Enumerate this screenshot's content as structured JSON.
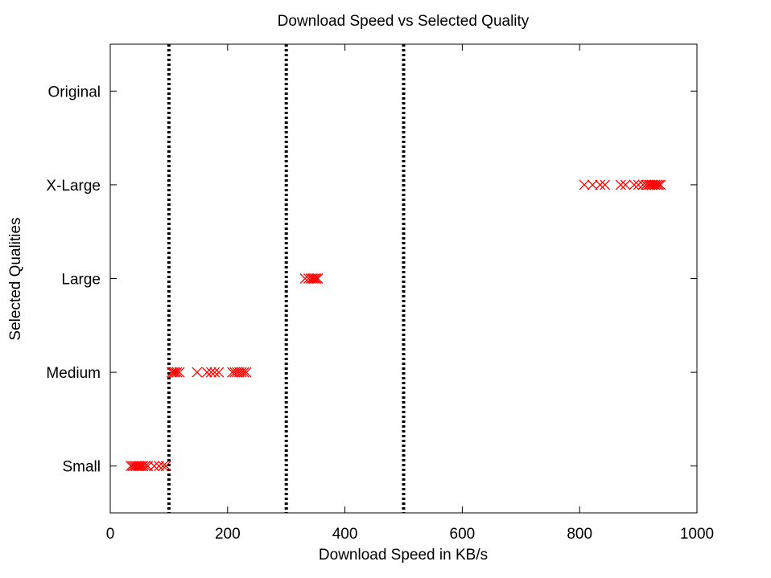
{
  "chart_data": {
    "type": "scatter",
    "title": "Download Speed vs Selected Quality",
    "xlabel": "Download Speed in KB/s",
    "ylabel": "Selected Qualities",
    "xlim": [
      0,
      1000
    ],
    "xticks": [
      0,
      200,
      400,
      600,
      800,
      1000
    ],
    "ycategories": [
      "Small",
      "Medium",
      "Large",
      "X-Large",
      "Original"
    ],
    "ylim": [
      0.5,
      5.5
    ],
    "grid": false,
    "marker": "x",
    "marker_color": "#ff0000",
    "threshold_lines": [
      100,
      300,
      500
    ],
    "threshold_line_style": "dotted",
    "series": [
      {
        "points": [
          {
            "x": 35,
            "y": "Small"
          },
          {
            "x": 38,
            "y": "Small"
          },
          {
            "x": 41,
            "y": "Small"
          },
          {
            "x": 44,
            "y": "Small"
          },
          {
            "x": 47,
            "y": "Small"
          },
          {
            "x": 50,
            "y": "Small"
          },
          {
            "x": 53,
            "y": "Small"
          },
          {
            "x": 56,
            "y": "Small"
          },
          {
            "x": 60,
            "y": "Small"
          },
          {
            "x": 64,
            "y": "Small"
          },
          {
            "x": 75,
            "y": "Small"
          },
          {
            "x": 83,
            "y": "Small"
          },
          {
            "x": 90,
            "y": "Small"
          },
          {
            "x": 95,
            "y": "Small"
          },
          {
            "x": 105,
            "y": "Medium"
          },
          {
            "x": 108,
            "y": "Medium"
          },
          {
            "x": 111,
            "y": "Medium"
          },
          {
            "x": 114,
            "y": "Medium"
          },
          {
            "x": 118,
            "y": "Medium"
          },
          {
            "x": 148,
            "y": "Medium"
          },
          {
            "x": 165,
            "y": "Medium"
          },
          {
            "x": 172,
            "y": "Medium"
          },
          {
            "x": 178,
            "y": "Medium"
          },
          {
            "x": 185,
            "y": "Medium"
          },
          {
            "x": 208,
            "y": "Medium"
          },
          {
            "x": 212,
            "y": "Medium"
          },
          {
            "x": 216,
            "y": "Medium"
          },
          {
            "x": 220,
            "y": "Medium"
          },
          {
            "x": 224,
            "y": "Medium"
          },
          {
            "x": 228,
            "y": "Medium"
          },
          {
            "x": 232,
            "y": "Medium"
          },
          {
            "x": 332,
            "y": "Large"
          },
          {
            "x": 338,
            "y": "Large"
          },
          {
            "x": 342,
            "y": "Large"
          },
          {
            "x": 345,
            "y": "Large"
          },
          {
            "x": 348,
            "y": "Large"
          },
          {
            "x": 351,
            "y": "Large"
          },
          {
            "x": 354,
            "y": "Large"
          },
          {
            "x": 808,
            "y": "X-Large"
          },
          {
            "x": 822,
            "y": "X-Large"
          },
          {
            "x": 835,
            "y": "X-Large"
          },
          {
            "x": 843,
            "y": "X-Large"
          },
          {
            "x": 870,
            "y": "X-Large"
          },
          {
            "x": 878,
            "y": "X-Large"
          },
          {
            "x": 893,
            "y": "X-Large"
          },
          {
            "x": 900,
            "y": "X-Large"
          },
          {
            "x": 908,
            "y": "X-Large"
          },
          {
            "x": 913,
            "y": "X-Large"
          },
          {
            "x": 917,
            "y": "X-Large"
          },
          {
            "x": 920,
            "y": "X-Large"
          },
          {
            "x": 923,
            "y": "X-Large"
          },
          {
            "x": 926,
            "y": "X-Large"
          },
          {
            "x": 929,
            "y": "X-Large"
          },
          {
            "x": 932,
            "y": "X-Large"
          },
          {
            "x": 935,
            "y": "X-Large"
          },
          {
            "x": 938,
            "y": "X-Large"
          }
        ]
      }
    ]
  }
}
